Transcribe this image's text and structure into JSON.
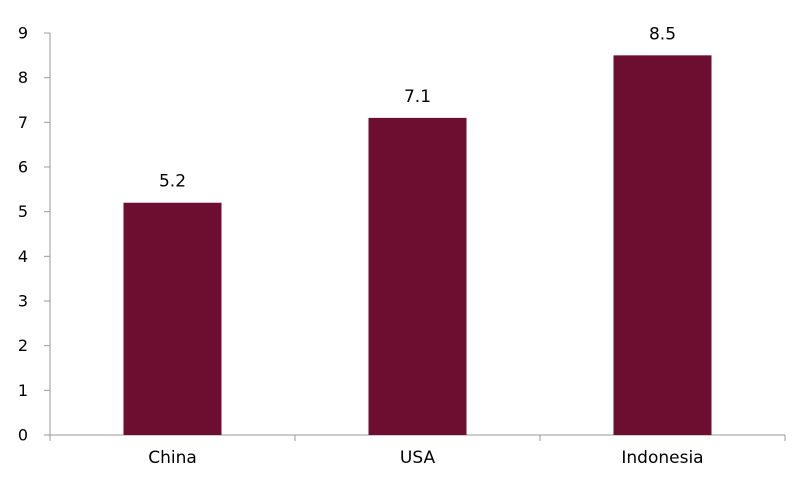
{
  "chart_data": {
    "type": "bar",
    "title": "",
    "xlabel": "",
    "ylabel": "",
    "categories": [
      "China",
      "USA",
      "Indonesia"
    ],
    "values": [
      5.2,
      7.1,
      8.5
    ],
    "data_labels": [
      "5.2",
      "7.1",
      "8.5"
    ],
    "ylim": [
      0,
      9
    ],
    "yticks": [
      0,
      1,
      2,
      3,
      4,
      5,
      6,
      7,
      8,
      9
    ],
    "ytick_labels": [
      "0",
      "1",
      "2",
      "3",
      "4",
      "5",
      "6",
      "7",
      "8",
      "9"
    ],
    "grid": false,
    "legend": "none",
    "bar_color": "#6d0e30",
    "axis_color": "#999999"
  }
}
